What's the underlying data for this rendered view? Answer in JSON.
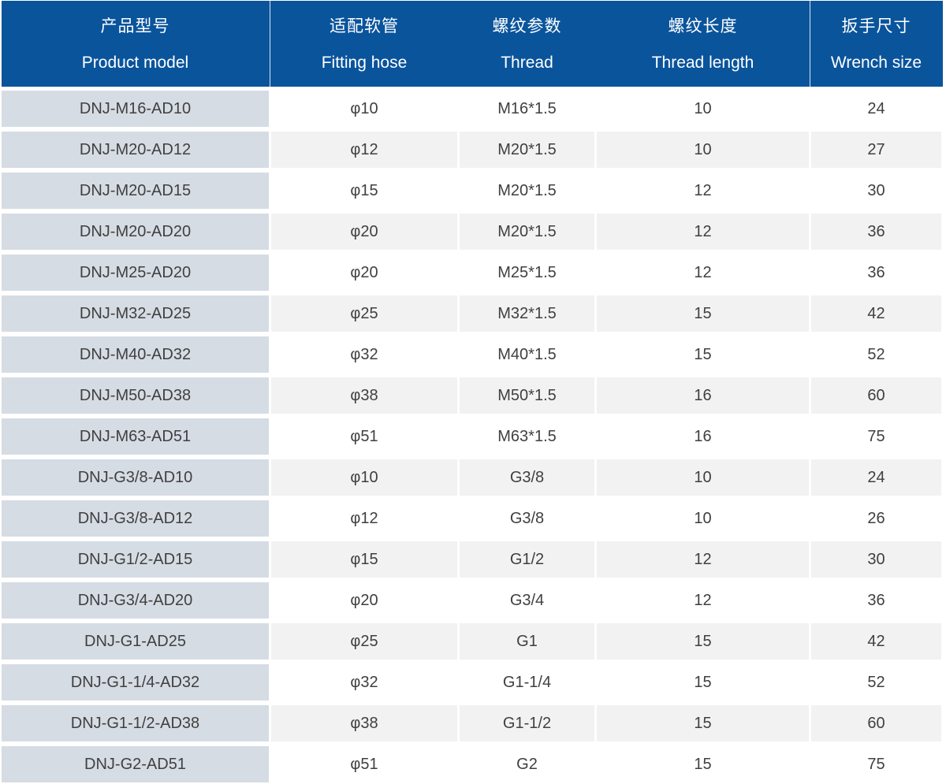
{
  "colors": {
    "header_bg": "#0a549c",
    "header_text": "#ffffff",
    "model_column_bg": "#d6dce4",
    "row_bg": "#ffffff",
    "row_alt_bg": "#f2f2f2",
    "body_text": "#404040"
  },
  "chart_data": {
    "type": "table",
    "columns": [
      {
        "zh": "产品型号",
        "en": "Product model"
      },
      {
        "zh": "适配软管",
        "en": "Fitting hose"
      },
      {
        "zh": "螺纹参数",
        "en": "Thread"
      },
      {
        "zh": "螺纹长度",
        "en": "Thread length"
      },
      {
        "zh": "扳手尺寸",
        "en": "Wrench size"
      }
    ],
    "rows": [
      [
        "DNJ-M16-AD10",
        "φ10",
        "M16*1.5",
        "10",
        "24"
      ],
      [
        "DNJ-M20-AD12",
        "φ12",
        "M20*1.5",
        "10",
        "27"
      ],
      [
        "DNJ-M20-AD15",
        "φ15",
        "M20*1.5",
        "12",
        "30"
      ],
      [
        "DNJ-M20-AD20",
        "φ20",
        "M20*1.5",
        "12",
        "36"
      ],
      [
        "DNJ-M25-AD20",
        "φ20",
        "M25*1.5",
        "12",
        "36"
      ],
      [
        "DNJ-M32-AD25",
        "φ25",
        "M32*1.5",
        "15",
        "42"
      ],
      [
        "DNJ-M40-AD32",
        "φ32",
        "M40*1.5",
        "15",
        "52"
      ],
      [
        "DNJ-M50-AD38",
        "φ38",
        "M50*1.5",
        "16",
        "60"
      ],
      [
        "DNJ-M63-AD51",
        "φ51",
        "M63*1.5",
        "16",
        "75"
      ],
      [
        "DNJ-G3/8-AD10",
        "φ10",
        "G3/8",
        "10",
        "24"
      ],
      [
        "DNJ-G3/8-AD12",
        "φ12",
        "G3/8",
        "10",
        "26"
      ],
      [
        "DNJ-G1/2-AD15",
        "φ15",
        "G1/2",
        "12",
        "30"
      ],
      [
        "DNJ-G3/4-AD20",
        "φ20",
        "G3/4",
        "12",
        "36"
      ],
      [
        "DNJ-G1-AD25",
        "φ25",
        "G1",
        "15",
        "42"
      ],
      [
        "DNJ-G1-1/4-AD32",
        "φ32",
        "G1-1/4",
        "15",
        "52"
      ],
      [
        "DNJ-G1-1/2-AD38",
        "φ38",
        "G1-1/2",
        "15",
        "60"
      ],
      [
        "DNJ-G2-AD51",
        "φ51",
        "G2",
        "15",
        "75"
      ]
    ]
  }
}
